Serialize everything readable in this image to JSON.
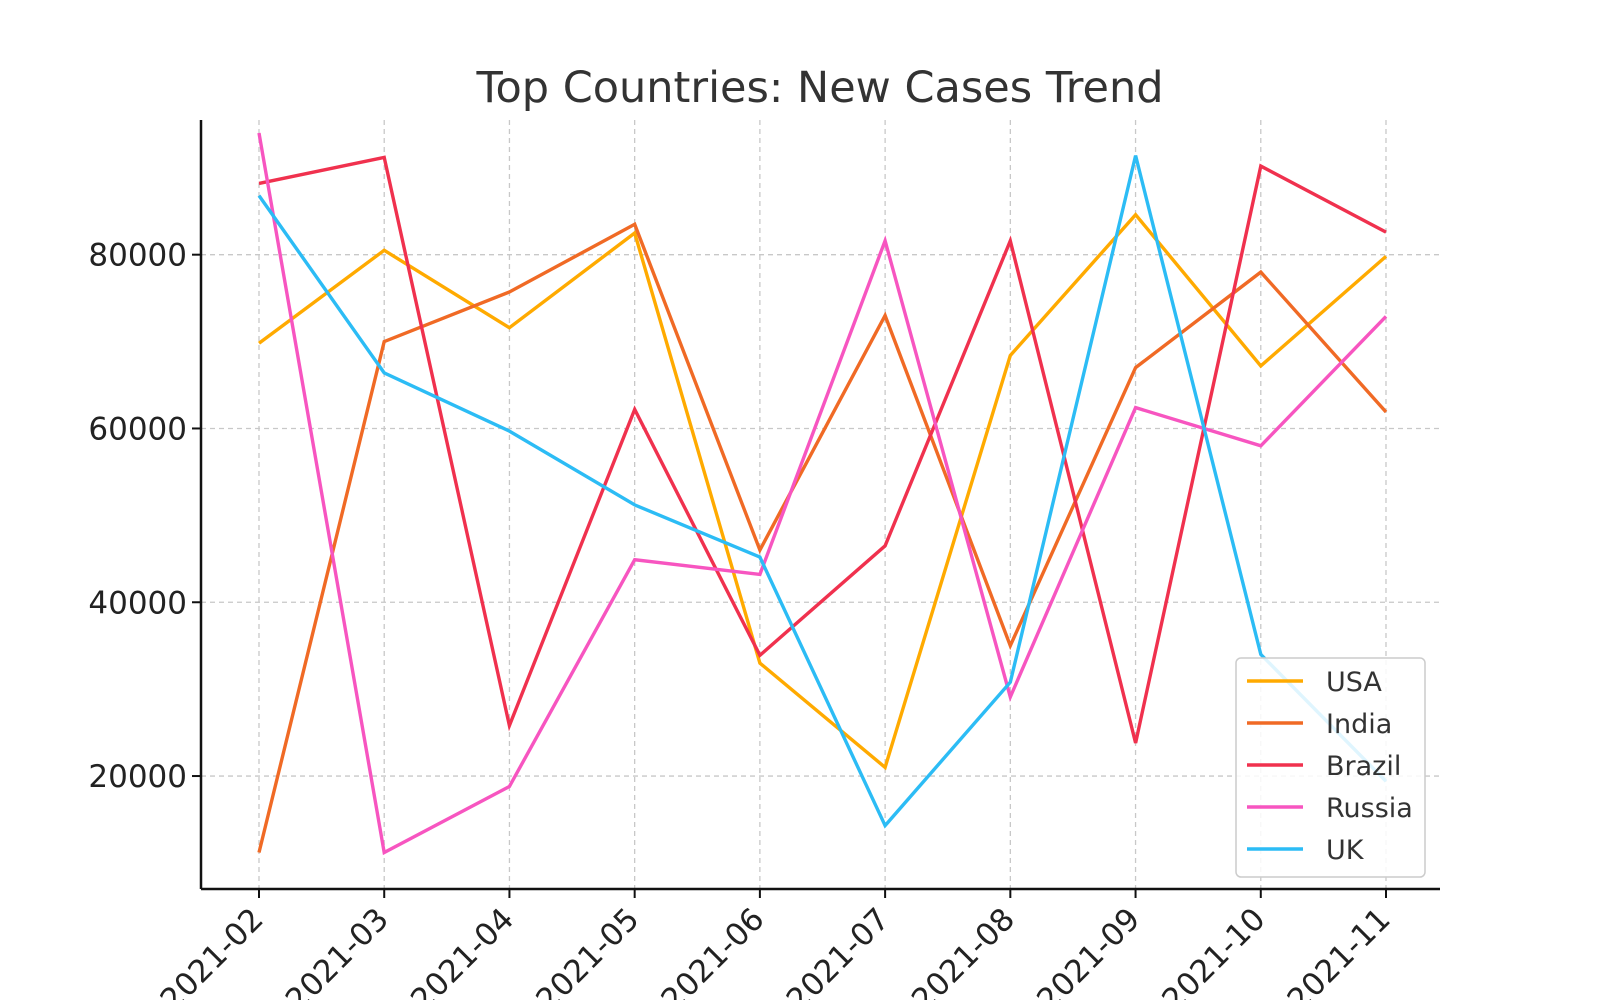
{
  "chart_data": {
    "type": "line",
    "title": "Top Countries: New Cases Trend",
    "xlabel": "",
    "ylabel": "",
    "categories": [
      "2021-02",
      "2021-03",
      "2021-04",
      "2021-05",
      "2021-06",
      "2021-07",
      "2021-08",
      "2021-09",
      "2021-10",
      "2021-11"
    ],
    "ylim": [
      7000,
      95500
    ],
    "yticks": [
      20000,
      40000,
      60000,
      80000
    ],
    "grid": true,
    "legend_position": "lower-right",
    "series": [
      {
        "name": "USA",
        "color": "#ffaa00",
        "values": [
          69800,
          80500,
          71600,
          82500,
          33000,
          21000,
          68400,
          84600,
          67200,
          79800
        ]
      },
      {
        "name": "India",
        "color": "#f06a25",
        "values": [
          11200,
          70000,
          75700,
          83500,
          46000,
          73000,
          35000,
          67000,
          78000,
          61900
        ]
      },
      {
        "name": "Brazil",
        "color": "#f0314e",
        "values": [
          88200,
          91200,
          25800,
          62200,
          33900,
          46500,
          81600,
          23800,
          90200,
          82600
        ]
      },
      {
        "name": "Russia",
        "color": "#f755c0",
        "values": [
          94000,
          11200,
          18800,
          44900,
          43200,
          81600,
          29100,
          62400,
          58000,
          72900
        ]
      },
      {
        "name": "UK",
        "color": "#2cbcf5",
        "values": [
          86800,
          66400,
          59700,
          51200,
          45200,
          14300,
          30800,
          91400,
          34000,
          19400
        ]
      }
    ]
  }
}
